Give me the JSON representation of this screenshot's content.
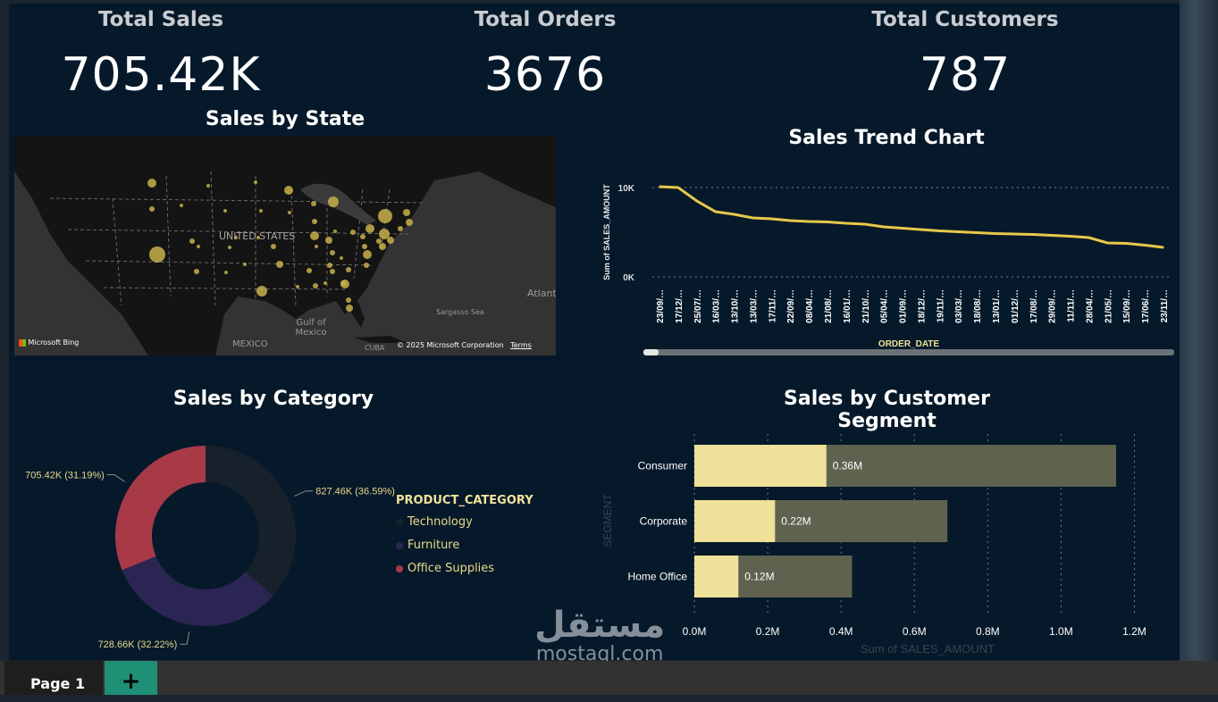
{
  "kpis": {
    "sales": {
      "title": "Total Sales",
      "value": "705.42K"
    },
    "orders": {
      "title": "Total Orders",
      "value": "3676"
    },
    "customers": {
      "title": "Total Customers",
      "value": "787"
    }
  },
  "map": {
    "title": "Sales by State",
    "labels": {
      "country": "UNITED STATES",
      "gulf": "Gulf of\nMexico",
      "mexico": "MEXICO",
      "cuba": "CUBA",
      "atlantic": "Atlant",
      "sargasso": "Sargasso Sea",
      "bing": "Microsoft Bing",
      "copyright": "© 2025 Microsoft Corporation",
      "terms": "Terms"
    },
    "bubble_color": "#c7b04a"
  },
  "trend": {
    "title": "Sales Trend Chart",
    "ylabel": "Sum of SALES_AMOUNT",
    "xlabel": "ORDER_DATE",
    "y_ticks": [
      "10K",
      "0K"
    ]
  },
  "category": {
    "title": "Sales by Category",
    "legend_title": "PRODUCT_CATEGORY",
    "items": [
      {
        "name": "Technology",
        "label": "827.46K (36.59%)",
        "color": "#17212b"
      },
      {
        "name": "Furniture",
        "label": "728.66K (32.22%)",
        "color": "#2b2553"
      },
      {
        "name": "Office Supplies",
        "label": "705.42K (31.19%)",
        "color": "#a83a47"
      }
    ]
  },
  "segment": {
    "title": "Sales by Customer Segment",
    "ylabel": "SEGMENT",
    "xlabel": "Sum of SALES_AMOUNT"
  },
  "chart_data": [
    {
      "type": "line",
      "title": "Sales Trend Chart",
      "xlabel": "ORDER_DATE",
      "ylabel": "Sum of SALES_AMOUNT",
      "x": [
        "23/09/…",
        "17/12/…",
        "25/07/…",
        "16/03/…",
        "13/10/…",
        "13/03/…",
        "17/11/…",
        "22/09/…",
        "08/04/…",
        "21/08/…",
        "16/01/…",
        "21/10/…",
        "05/04/…",
        "01/09/…",
        "18/12/…",
        "19/11/…",
        "03/03/…",
        "18/08/…",
        "13/01/…",
        "01/12/…",
        "17/08/…",
        "29/09/…",
        "11/11/…",
        "28/04/…",
        "21/05/…",
        "15/09/…",
        "17/06/…",
        "23/11/…"
      ],
      "series": [
        {
          "values": [
            10100,
            10000,
            8500,
            7300,
            7000,
            6600,
            6500,
            6300,
            6200,
            6150,
            6000,
            5900,
            5600,
            5450,
            5300,
            5150,
            5050,
            4950,
            4850,
            4800,
            4750,
            4650,
            4550,
            4400,
            3800,
            3750,
            3550,
            3300
          ],
          "color": "#e6c84a"
        }
      ],
      "ylim": [
        0,
        12000
      ],
      "grid": true
    },
    {
      "type": "pie",
      "title": "Sales by Category",
      "categories": [
        "Technology",
        "Furniture",
        "Office Supplies"
      ],
      "values": [
        827.46,
        728.66,
        705.42
      ],
      "labels": [
        "827.46K (36.59%)",
        "728.66K (32.22%)",
        "705.42K (31.19%)"
      ]
    },
    {
      "type": "bar",
      "orientation": "horizontal",
      "title": "Sales by Customer Segment",
      "categories": [
        "Consumer",
        "Corporate",
        "Home Office"
      ],
      "series": [
        {
          "values": [
            0.36,
            0.22,
            0.12
          ],
          "color": "#efe19a",
          "labels": [
            "0.36M",
            "0.22M",
            "0.12M"
          ]
        },
        {
          "values": [
            1.15,
            0.69,
            0.43
          ],
          "color": "#606250"
        }
      ],
      "xlim": [
        0,
        1.25
      ],
      "x_ticks": [
        "0.0M",
        "0.2M",
        "0.4M",
        "0.6M",
        "0.8M",
        "1.0M",
        "1.2M"
      ],
      "xlabel": "Sum of SALES_AMOUNT",
      "ylabel": "SEGMENT"
    }
  ],
  "tabs": {
    "page1": "Page 1",
    "add": "+"
  },
  "watermark": {
    "arabic": "مستقل",
    "latin": "mostaql.com"
  }
}
